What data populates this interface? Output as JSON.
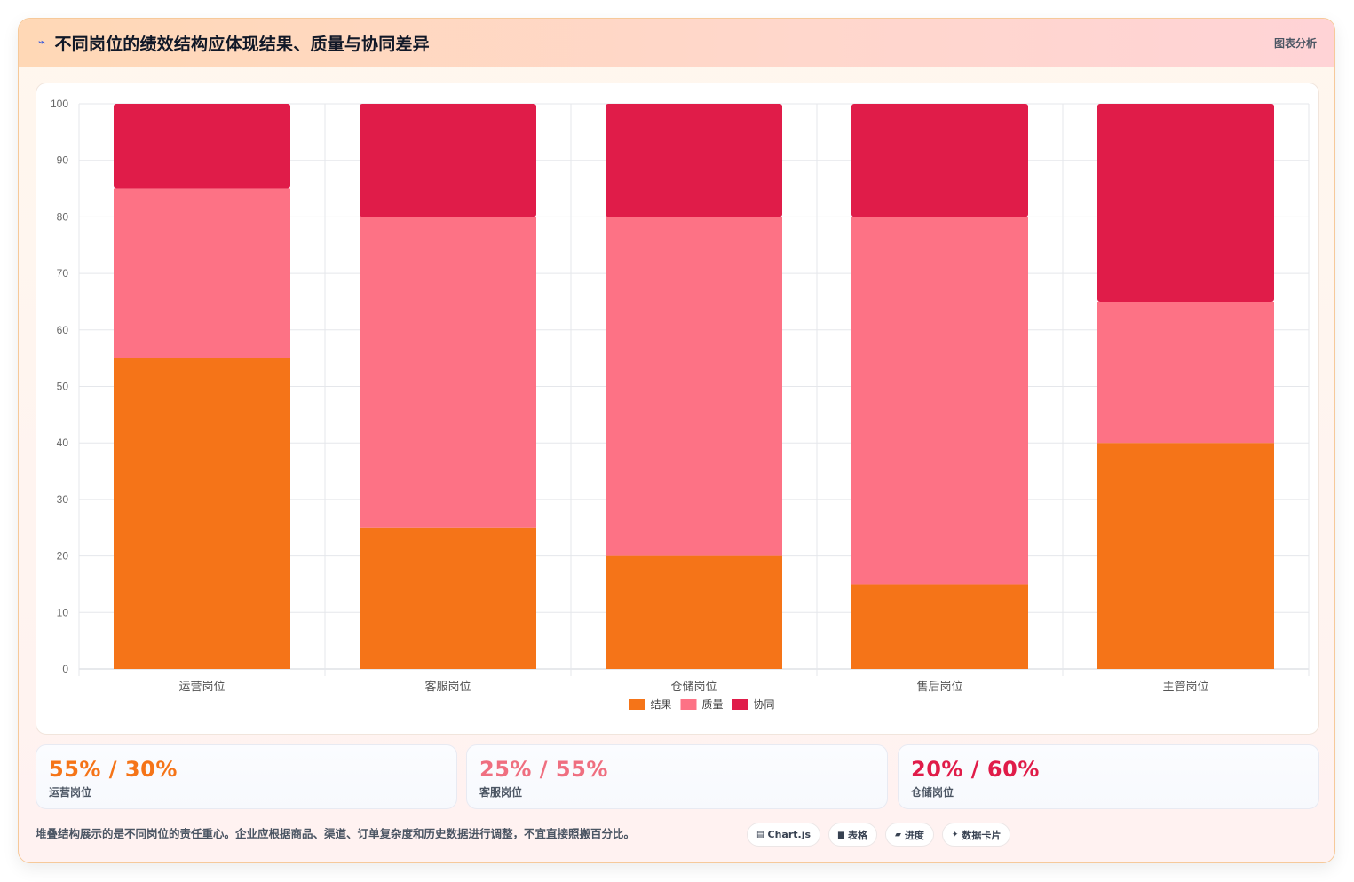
{
  "header": {
    "icon": "chart-line-icon",
    "title": "不同岗位的绩效结构应体现结果、质量与协同差异",
    "link_label": "图表分析"
  },
  "chart_data": {
    "type": "bar",
    "stacked": true,
    "categories": [
      "运营岗位",
      "客服岗位",
      "仓储岗位",
      "售后岗位",
      "主管岗位"
    ],
    "series": [
      {
        "name": "结果",
        "color": "#f57418",
        "values": [
          55,
          25,
          20,
          15,
          40
        ]
      },
      {
        "name": "质量",
        "color": "#fd7285",
        "values": [
          30,
          55,
          60,
          65,
          25
        ]
      },
      {
        "name": "协同",
        "color": "#e01c49",
        "values": [
          15,
          20,
          20,
          20,
          35
        ]
      }
    ],
    "yticks": [
      0,
      10,
      20,
      30,
      40,
      50,
      60,
      70,
      80,
      90,
      100
    ],
    "ylim": [
      0,
      100
    ],
    "grid": true,
    "legend_position": "bottom"
  },
  "stats": [
    {
      "value": "55% / 30%",
      "label": "运营岗位",
      "color": "#f57418"
    },
    {
      "value": "25% / 55%",
      "label": "客服岗位",
      "color": "#ef6f80"
    },
    {
      "value": "20% / 60%",
      "label": "仓储岗位",
      "color": "#e01c49"
    }
  ],
  "footer": {
    "note": "堆叠结构展示的是不同岗位的责任重心。企业应根据商品、渠道、订单复杂度和历史数据进行调整，不宜直接照搬百分比。",
    "tags": [
      {
        "icon": "chart-icon",
        "label": "Chart.js"
      },
      {
        "icon": "table-icon",
        "label": "表格"
      },
      {
        "icon": "progress-icon",
        "label": "进度"
      },
      {
        "icon": "sparkle-icon",
        "label": "数据卡片"
      }
    ]
  }
}
